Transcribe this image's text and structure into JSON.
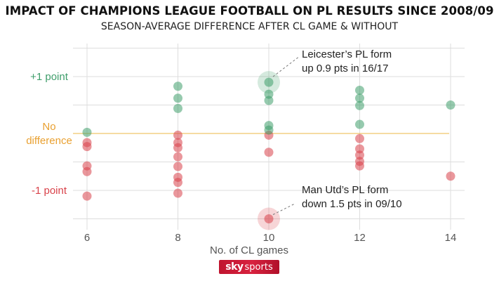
{
  "title": "IMPACT OF CHAMPIONS LEAGUE FOOTBALL ON PL RESULTS SINCE 2008/09",
  "subtitle": "SEASON-AVERAGE DIFFERENCE AFTER CL GAME & WITHOUT",
  "logo": {
    "sky": "sky",
    "sports": "sports"
  },
  "colors": {
    "positive": "#3f9e6b",
    "negative": "#d9424a",
    "zero_line": "#f0c56a",
    "zero_label": "#e9a030",
    "grid": "#dddddd",
    "axis_text": "#555555"
  },
  "chart_data": {
    "type": "scatter",
    "title": "IMPACT OF CHAMPIONS LEAGUE FOOTBALL ON PL RESULTS SINCE 2008/09",
    "subtitle": "SEASON-AVERAGE DIFFERENCE AFTER CL GAME & WITHOUT",
    "xlabel": "No. of CL games",
    "ylabel": "",
    "xlim": [
      6,
      14
    ],
    "ylim": [
      -1.5,
      1.25
    ],
    "x_ticks": [
      "6",
      "8",
      "10",
      "12",
      "14"
    ],
    "y_tick_labels": [
      {
        "y": 1,
        "text": "+1 point",
        "color": "positive"
      },
      {
        "y": 0,
        "text": "No\ndifference",
        "color": "zero"
      },
      {
        "y": -1,
        "text": "-1 point",
        "color": "negative"
      }
    ],
    "grid": true,
    "positive_points": [
      {
        "x": 6,
        "y": 0.02
      },
      {
        "x": 8,
        "y": 0.83
      },
      {
        "x": 8,
        "y": 0.62
      },
      {
        "x": 8,
        "y": 0.44
      },
      {
        "x": 10,
        "y": 0.9
      },
      {
        "x": 10,
        "y": 0.69
      },
      {
        "x": 10,
        "y": 0.58
      },
      {
        "x": 10,
        "y": 0.14
      },
      {
        "x": 10,
        "y": 0.06
      },
      {
        "x": 12,
        "y": 0.76
      },
      {
        "x": 12,
        "y": 0.62
      },
      {
        "x": 12,
        "y": 0.49
      },
      {
        "x": 12,
        "y": 0.16
      },
      {
        "x": 14,
        "y": 0.5
      }
    ],
    "negative_points": [
      {
        "x": 6,
        "y": -0.16
      },
      {
        "x": 6,
        "y": -0.23
      },
      {
        "x": 6,
        "y": -0.57
      },
      {
        "x": 6,
        "y": -0.67
      },
      {
        "x": 6,
        "y": -1.1
      },
      {
        "x": 8,
        "y": -0.03
      },
      {
        "x": 8,
        "y": -0.16
      },
      {
        "x": 8,
        "y": -0.25
      },
      {
        "x": 8,
        "y": -0.41
      },
      {
        "x": 8,
        "y": -0.58
      },
      {
        "x": 8,
        "y": -0.77
      },
      {
        "x": 8,
        "y": -0.86
      },
      {
        "x": 8,
        "y": -1.05
      },
      {
        "x": 10,
        "y": -0.03
      },
      {
        "x": 10,
        "y": -0.33
      },
      {
        "x": 10,
        "y": -1.5
      },
      {
        "x": 12,
        "y": -0.09
      },
      {
        "x": 12,
        "y": -0.27
      },
      {
        "x": 12,
        "y": -0.38
      },
      {
        "x": 12,
        "y": -0.57
      },
      {
        "x": 12,
        "y": -0.49
      },
      {
        "x": 14,
        "y": -0.75
      }
    ],
    "annotations": [
      {
        "text": [
          "Leicester’s PL form",
          "up 0.9 pts in 16/17"
        ],
        "x": 10,
        "y": 0.9,
        "color": "positive"
      },
      {
        "text": [
          "Man Utd’s PL form",
          "down 1.5 pts in 09/10"
        ],
        "x": 10,
        "y": -1.5,
        "color": "negative"
      }
    ]
  }
}
